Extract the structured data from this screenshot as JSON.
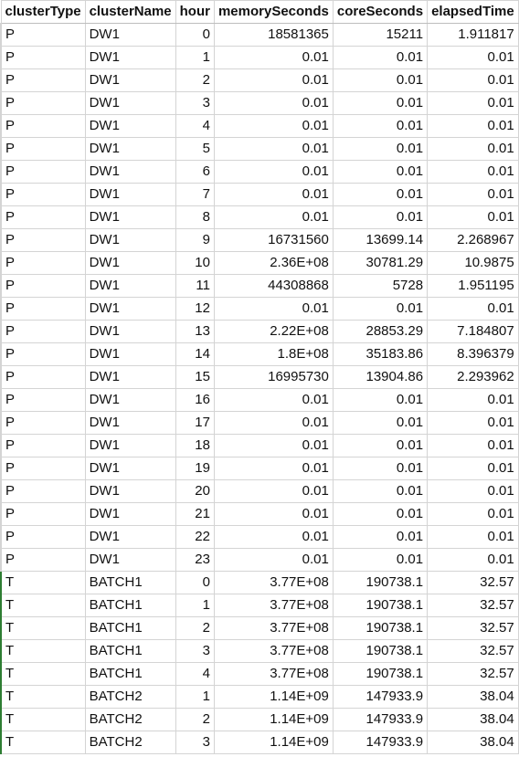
{
  "sheet": {
    "columns": [
      "clusterType",
      "clusterName",
      "hour",
      "memorySeconds",
      "coreSeconds",
      "elapsedTime"
    ],
    "rows": [
      [
        "P",
        "DW1",
        "0",
        "18581365",
        "15211",
        "1.911817"
      ],
      [
        "P",
        "DW1",
        "1",
        "0.01",
        "0.01",
        "0.01"
      ],
      [
        "P",
        "DW1",
        "2",
        "0.01",
        "0.01",
        "0.01"
      ],
      [
        "P",
        "DW1",
        "3",
        "0.01",
        "0.01",
        "0.01"
      ],
      [
        "P",
        "DW1",
        "4",
        "0.01",
        "0.01",
        "0.01"
      ],
      [
        "P",
        "DW1",
        "5",
        "0.01",
        "0.01",
        "0.01"
      ],
      [
        "P",
        "DW1",
        "6",
        "0.01",
        "0.01",
        "0.01"
      ],
      [
        "P",
        "DW1",
        "7",
        "0.01",
        "0.01",
        "0.01"
      ],
      [
        "P",
        "DW1",
        "8",
        "0.01",
        "0.01",
        "0.01"
      ],
      [
        "P",
        "DW1",
        "9",
        "16731560",
        "13699.14",
        "2.268967"
      ],
      [
        "P",
        "DW1",
        "10",
        "2.36E+08",
        "30781.29",
        "10.9875"
      ],
      [
        "P",
        "DW1",
        "11",
        "44308868",
        "5728",
        "1.951195"
      ],
      [
        "P",
        "DW1",
        "12",
        "0.01",
        "0.01",
        "0.01"
      ],
      [
        "P",
        "DW1",
        "13",
        "2.22E+08",
        "28853.29",
        "7.184807"
      ],
      [
        "P",
        "DW1",
        "14",
        "1.8E+08",
        "35183.86",
        "8.396379"
      ],
      [
        "P",
        "DW1",
        "15",
        "16995730",
        "13904.86",
        "2.293962"
      ],
      [
        "P",
        "DW1",
        "16",
        "0.01",
        "0.01",
        "0.01"
      ],
      [
        "P",
        "DW1",
        "17",
        "0.01",
        "0.01",
        "0.01"
      ],
      [
        "P",
        "DW1",
        "18",
        "0.01",
        "0.01",
        "0.01"
      ],
      [
        "P",
        "DW1",
        "19",
        "0.01",
        "0.01",
        "0.01"
      ],
      [
        "P",
        "DW1",
        "20",
        "0.01",
        "0.01",
        "0.01"
      ],
      [
        "P",
        "DW1",
        "21",
        "0.01",
        "0.01",
        "0.01"
      ],
      [
        "P",
        "DW1",
        "22",
        "0.01",
        "0.01",
        "0.01"
      ],
      [
        "P",
        "DW1",
        "23",
        "0.01",
        "0.01",
        "0.01"
      ],
      [
        "T",
        "BATCH1",
        "0",
        "3.77E+08",
        "190738.1",
        "32.57"
      ],
      [
        "T",
        "BATCH1",
        "1",
        "3.77E+08",
        "190738.1",
        "32.57"
      ],
      [
        "T",
        "BATCH1",
        "2",
        "3.77E+08",
        "190738.1",
        "32.57"
      ],
      [
        "T",
        "BATCH1",
        "3",
        "3.77E+08",
        "190738.1",
        "32.57"
      ],
      [
        "T",
        "BATCH1",
        "4",
        "3.77E+08",
        "190738.1",
        "32.57"
      ],
      [
        "T",
        "BATCH2",
        "1",
        "1.14E+09",
        "147933.9",
        "38.04"
      ],
      [
        "T",
        "BATCH2",
        "2",
        "1.14E+09",
        "147933.9",
        "38.04"
      ],
      [
        "T",
        "BATCH2",
        "3",
        "1.14E+09",
        "147933.9",
        "38.04"
      ]
    ]
  }
}
